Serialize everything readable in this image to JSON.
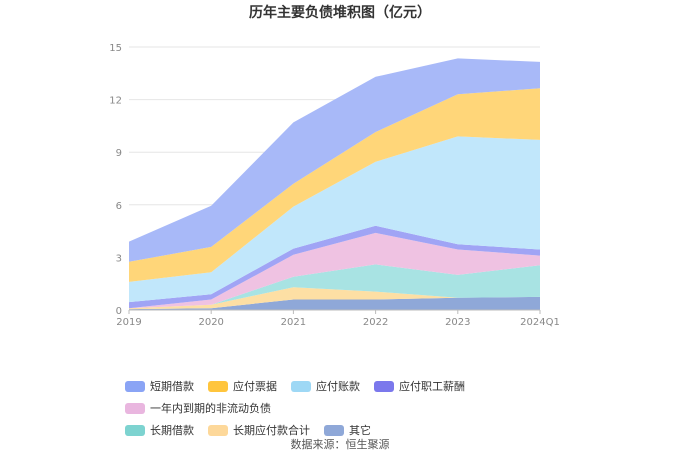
{
  "title": "历年主要负债堆积图（亿元）",
  "source": "数据来源：恒生聚源",
  "chart_data": {
    "type": "area",
    "stacked": true,
    "title": "历年主要负债堆积图（亿元）",
    "categories": [
      "2019",
      "2020",
      "2021",
      "2022",
      "2023",
      "2024Q1"
    ],
    "ylim": [
      0,
      15
    ],
    "yticks": [
      "0",
      "3",
      "6",
      "9",
      "12",
      "15"
    ],
    "grid": true,
    "legend_position": "bottom",
    "series": [
      {
        "name": "其它",
        "color": "#8fa8d8",
        "values": [
          0.05,
          0.1,
          0.6,
          0.6,
          0.7,
          0.75
        ]
      },
      {
        "name": "长期应付款合计",
        "color": "#fddfa4",
        "values": [
          0.05,
          0.2,
          0.7,
          0.45,
          0.0,
          0.0
        ]
      },
      {
        "name": "长期借款",
        "color": "#a8e3e3",
        "values": [
          0.0,
          0.0,
          0.6,
          1.55,
          1.3,
          1.8
        ]
      },
      {
        "name": "一年内到期的非流动负债",
        "color": "#efc2e2",
        "values": [
          0.0,
          0.3,
          1.25,
          1.8,
          1.45,
          0.55
        ]
      },
      {
        "name": "应付职工薪酬",
        "color": "#a0a4f5",
        "values": [
          0.35,
          0.3,
          0.35,
          0.4,
          0.3,
          0.35
        ]
      },
      {
        "name": "应付账款",
        "color": "#c1e7fb",
        "values": [
          1.15,
          1.25,
          2.4,
          3.65,
          6.15,
          6.25
        ]
      },
      {
        "name": "应付票据",
        "color": "#ffd679",
        "values": [
          1.15,
          1.45,
          1.3,
          1.7,
          2.4,
          2.95
        ]
      },
      {
        "name": "短期借款",
        "color": "#a8b9f8",
        "values": [
          1.15,
          2.35,
          3.5,
          3.15,
          2.05,
          1.5
        ]
      }
    ]
  },
  "legend": {
    "row1": [
      {
        "label": "短期借款",
        "color": "#8aa4f5"
      },
      {
        "label": "应付票据",
        "color": "#ffc53d"
      },
      {
        "label": "应付账款",
        "color": "#9ed8f5"
      },
      {
        "label": "应付职工薪酬",
        "color": "#7b78ec"
      },
      {
        "label": "一年内到期的非流动负债",
        "color": "#e9b6df"
      }
    ],
    "row2": [
      {
        "label": "长期借款",
        "color": "#7dd3d0"
      },
      {
        "label": "长期应付款合计",
        "color": "#fdd89a"
      },
      {
        "label": "其它",
        "color": "#8fa8d8"
      }
    ]
  }
}
